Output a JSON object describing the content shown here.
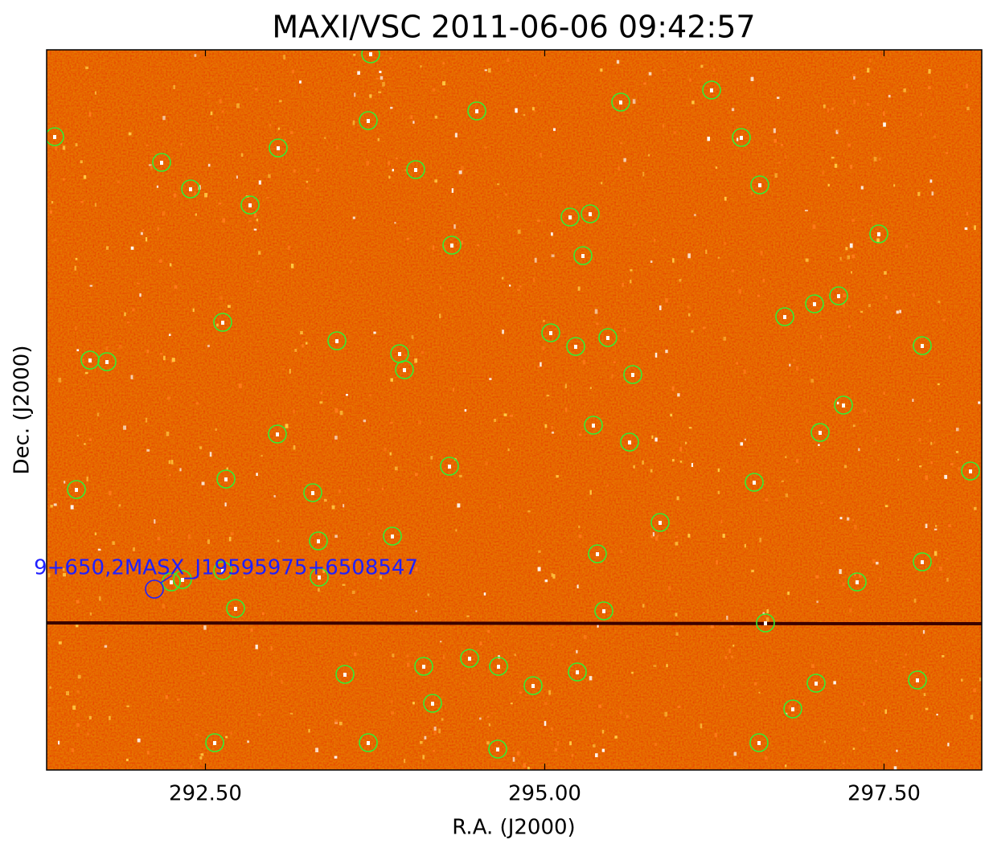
{
  "chart_data": {
    "type": "image",
    "title": "MAXI/VSC 2011-06-06 09:42:57",
    "x_label": "R.A. (J2000)",
    "y_label": "Dec. (J2000)",
    "xlim": [
      291.33,
      298.22
    ],
    "xticks": [
      {
        "value": 292.5,
        "label": "292.50"
      },
      {
        "value": 295,
        "label": "295.00"
      },
      {
        "value": 297.5,
        "label": "297.50"
      }
    ],
    "annotation": "9+650,2MASX_J19595975+6508547"
  }
}
